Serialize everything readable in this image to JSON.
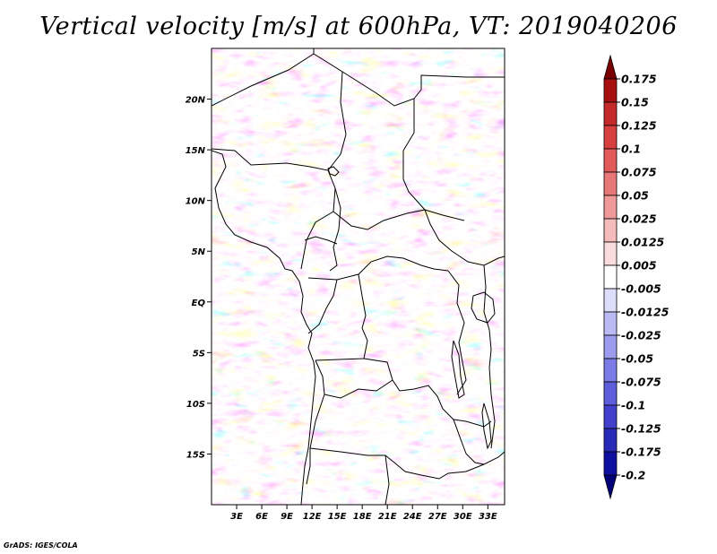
{
  "title": "Vertical velocity [m/s] at 600hPa, VT: 2019040206",
  "credit": "GrADS: IGES/COLA",
  "map": {
    "lon_range": [
      0,
      35
    ],
    "lat_range": [
      -20,
      25
    ],
    "x_ticks": [
      "3E",
      "6E",
      "9E",
      "12E",
      "15E",
      "18E",
      "21E",
      "24E",
      "27E",
      "30E",
      "33E"
    ],
    "y_ticks": [
      "20N",
      "15N",
      "10N",
      "5N",
      "EQ",
      "5S",
      "10S",
      "15S"
    ]
  },
  "colorbar": {
    "labels": [
      "0.175",
      "0.15",
      "0.125",
      "0.1",
      "0.075",
      "0.05",
      "0.025",
      "0.0125",
      "0.005",
      "-0.005",
      "-0.0125",
      "-0.025",
      "-0.05",
      "-0.075",
      "-0.1",
      "-0.125",
      "-0.175",
      "-0.2"
    ],
    "colors": [
      "#7a0000",
      "#a81010",
      "#c42a2a",
      "#d84040",
      "#e25a5a",
      "#e87878",
      "#ef9999",
      "#f5baba",
      "#fbdcdc",
      "#ffffff",
      "#dcdcfb",
      "#babaf5",
      "#9c9cee",
      "#7c7ce6",
      "#5e5edc",
      "#4040cc",
      "#2a2ab8",
      "#1010a0",
      "#000078"
    ]
  }
}
